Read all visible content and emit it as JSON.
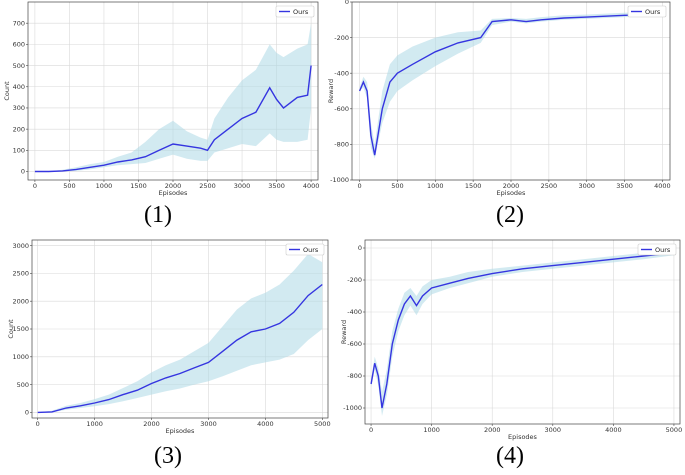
{
  "charts": [
    {
      "caption": "(1)",
      "chart_data": {
        "type": "line",
        "title": "",
        "xlabel": "Episodes",
        "ylabel": "Count",
        "xlim": [
          -100,
          4100
        ],
        "ylim": [
          -40,
          800
        ],
        "xticks": [
          0,
          500,
          1000,
          1500,
          2000,
          2500,
          3000,
          3500,
          4000
        ],
        "yticks": [
          0,
          100,
          200,
          300,
          400,
          500,
          600,
          700
        ],
        "grid": true,
        "legend_position": "top-right",
        "series": [
          {
            "name": "Ours",
            "color": "#3535e0",
            "band_color": "#add8e6",
            "x": [
              0,
              200,
              400,
              600,
              800,
              1000,
              1200,
              1400,
              1600,
              1800,
              2000,
              2200,
              2400,
              2500,
              2600,
              2800,
              3000,
              3200,
              3400,
              3500,
              3600,
              3800,
              3950,
              4000
            ],
            "y": [
              0,
              0,
              3,
              10,
              20,
              30,
              45,
              55,
              70,
              100,
              130,
              120,
              110,
              100,
              150,
              200,
              250,
              280,
              395,
              340,
              300,
              350,
              360,
              500
            ],
            "lower": [
              0,
              0,
              0,
              3,
              10,
              20,
              30,
              35,
              40,
              60,
              80,
              60,
              50,
              50,
              90,
              110,
              130,
              120,
              180,
              150,
              140,
              140,
              150,
              300
            ],
            "upper": [
              0,
              0,
              8,
              20,
              35,
              45,
              70,
              90,
              140,
              200,
              240,
              190,
              160,
              150,
              250,
              350,
              430,
              480,
              600,
              560,
              540,
              580,
              600,
              700
            ]
          }
        ]
      }
    },
    {
      "caption": "(2)",
      "chart_data": {
        "type": "line",
        "title": "",
        "xlabel": "Episodes",
        "ylabel": "Reward",
        "xlim": [
          -100,
          4100
        ],
        "ylim": [
          -1000,
          0
        ],
        "xticks": [
          0,
          500,
          1000,
          1500,
          2000,
          2500,
          3000,
          3500,
          4000
        ],
        "yticks": [
          -1000,
          -800,
          -600,
          -400,
          -200,
          0
        ],
        "grid": true,
        "legend_position": "top-right",
        "series": [
          {
            "name": "Ours",
            "color": "#3535e0",
            "band_color": "#add8e6",
            "x": [
              0,
              50,
              100,
              150,
              200,
              300,
              400,
              500,
              700,
              1000,
              1300,
              1600,
              1750,
              2000,
              2200,
              2400,
              2700,
              3000,
              3500,
              4000
            ],
            "y": [
              -500,
              -450,
              -500,
              -750,
              -860,
              -600,
              -450,
              -400,
              -350,
              -280,
              -230,
              -200,
              -110,
              -100,
              -110,
              -100,
              -90,
              -85,
              -75,
              -70
            ],
            "lower": [
              -500,
              -480,
              -540,
              -820,
              -880,
              -680,
              -560,
              -500,
              -440,
              -360,
              -290,
              -230,
              -130,
              -110,
              -120,
              -110,
              -100,
              -95,
              -85,
              -80
            ],
            "upper": [
              -480,
              -420,
              -450,
              -680,
              -800,
              -500,
              -350,
              -300,
              -250,
              -200,
              -170,
              -160,
              -95,
              -90,
              -95,
              -85,
              -75,
              -70,
              -60,
              -55
            ]
          }
        ]
      }
    },
    {
      "caption": "(3)",
      "chart_data": {
        "type": "line",
        "title": "",
        "xlabel": "Episodes",
        "ylabel": "Count",
        "xlim": [
          -100,
          5100
        ],
        "ylim": [
          -100,
          3100
        ],
        "xticks": [
          0,
          1000,
          2000,
          3000,
          4000,
          5000
        ],
        "yticks": [
          0,
          500,
          1000,
          1500,
          2000,
          2500,
          3000
        ],
        "grid": true,
        "legend_position": "top-right",
        "series": [
          {
            "name": "Ours",
            "color": "#3535e0",
            "band_color": "#add8e6",
            "x": [
              0,
              250,
              500,
              750,
              1000,
              1250,
              1500,
              1750,
              2000,
              2250,
              2500,
              2750,
              3000,
              3250,
              3500,
              3750,
              4000,
              4250,
              4500,
              4750,
              5000
            ],
            "y": [
              0,
              10,
              80,
              120,
              170,
              230,
              320,
              400,
              520,
              620,
              700,
              800,
              900,
              1100,
              1300,
              1450,
              1500,
              1600,
              1800,
              2100,
              2300
            ],
            "lower": [
              0,
              0,
              50,
              80,
              110,
              150,
              200,
              260,
              320,
              380,
              430,
              500,
              560,
              650,
              750,
              850,
              900,
              950,
              1050,
              1300,
              1500
            ],
            "upper": [
              0,
              30,
              120,
              170,
              240,
              320,
              440,
              560,
              720,
              850,
              950,
              1100,
              1250,
              1550,
              1850,
              2050,
              2150,
              2300,
              2550,
              2850,
              2700
            ]
          }
        ]
      }
    },
    {
      "caption": "(4)",
      "chart_data": {
        "type": "line",
        "title": "",
        "xlabel": "Episodes",
        "ylabel": "Reward",
        "xlim": [
          -100,
          5100
        ],
        "ylim": [
          -1100,
          50
        ],
        "xticks": [
          0,
          1000,
          2000,
          3000,
          4000,
          5000
        ],
        "yticks": [
          -1000,
          -800,
          -600,
          -400,
          -200,
          0
        ],
        "grid": true,
        "legend_position": "top-right",
        "series": [
          {
            "name": "Ours",
            "color": "#3535e0",
            "band_color": "#add8e6",
            "x": [
              0,
              60,
              120,
              180,
              260,
              350,
              450,
              550,
              650,
              750,
              850,
              1000,
              1300,
              1600,
              2000,
              2500,
              3000,
              3500,
              4000,
              4500,
              5000
            ],
            "y": [
              -850,
              -720,
              -800,
              -1000,
              -850,
              -600,
              -450,
              -350,
              -300,
              -360,
              -300,
              -250,
              -220,
              -190,
              -160,
              -130,
              -110,
              -90,
              -70,
              -50,
              -30
            ],
            "lower": [
              -870,
              -760,
              -860,
              -1050,
              -920,
              -680,
              -520,
              -420,
              -360,
              -420,
              -350,
              -290,
              -250,
              -220,
              -180,
              -150,
              -130,
              -110,
              -90,
              -70,
              -45
            ],
            "upper": [
              -820,
              -680,
              -750,
              -900,
              -760,
              -520,
              -380,
              -280,
              -250,
              -300,
              -240,
              -200,
              -180,
              -150,
              -130,
              -110,
              -90,
              -70,
              -50,
              -30,
              -15
            ]
          }
        ]
      }
    }
  ]
}
